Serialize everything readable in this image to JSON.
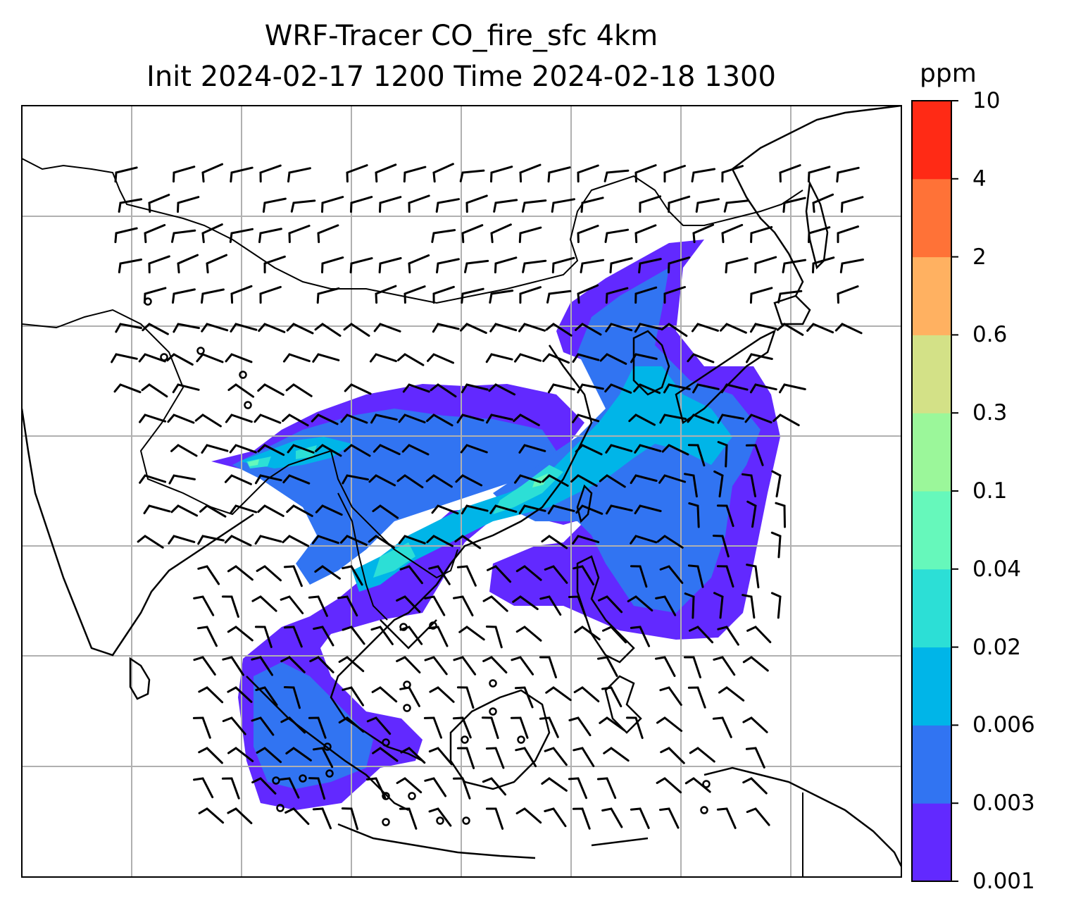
{
  "title": {
    "line1": "WRF-Tracer CO_fire_sfc 4km",
    "line2": "Init 2024-02-17 1200 Time 2024-02-18 1300"
  },
  "colorbar": {
    "unit": "ppm",
    "ticks": [
      "0.001",
      "0.003",
      "0.006",
      "0.02",
      "0.04",
      "0.1",
      "0.3",
      "0.6",
      "2",
      "4",
      "10"
    ],
    "colors": [
      "#6229ff",
      "#3174f2",
      "#00b5e8",
      "#2cdfd6",
      "#66f8bb",
      "#9bf79a",
      "#d3e187",
      "#ffb161",
      "#ff7237",
      "#ff2a15"
    ]
  },
  "map": {
    "gridlines": true,
    "features": [
      "coastlines",
      "country-borders",
      "wind-barbs",
      "tracer-contours"
    ]
  }
}
